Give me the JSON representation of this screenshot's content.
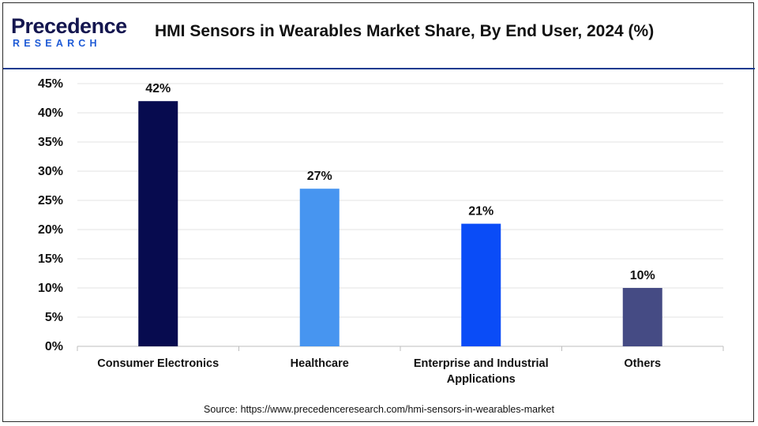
{
  "header": {
    "logo_top": "Precedence",
    "logo_bottom": "RESEARCH",
    "title": "HMI Sensors in Wearables Market Share, By End User, 2024 (%)"
  },
  "source": "Source: https://www.precedenceresearch.com/hmi-sensors-in-wearables-market",
  "chart_data": {
    "type": "bar",
    "title": "HMI Sensors in Wearables Market Share, By End User, 2024 (%)",
    "categories": [
      "Consumer Electronics",
      "Healthcare",
      "Enterprise and Industrial Applications",
      "Others"
    ],
    "category_lines": [
      [
        "Consumer Electronics"
      ],
      [
        "Healthcare"
      ],
      [
        "Enterprise and Industrial",
        "Applications"
      ],
      [
        "Others"
      ]
    ],
    "values": [
      42,
      27,
      21,
      10
    ],
    "data_labels": [
      "42%",
      "27%",
      "21%",
      "10%"
    ],
    "colors": [
      "#070b4f",
      "#4795f0",
      "#0a4cf7",
      "#454b84"
    ],
    "ylim": [
      0,
      45
    ],
    "yticks": [
      0,
      5,
      10,
      15,
      20,
      25,
      30,
      35,
      40,
      45
    ],
    "ytick_labels": [
      "0%",
      "5%",
      "10%",
      "15%",
      "20%",
      "25%",
      "30%",
      "35%",
      "40%",
      "45%"
    ],
    "grid": true,
    "xlabel": "",
    "ylabel": ""
  }
}
